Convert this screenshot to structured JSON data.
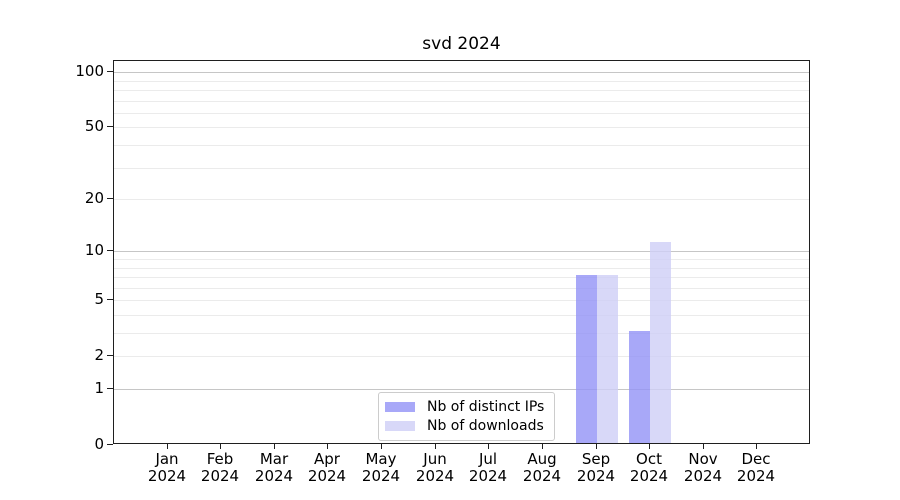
{
  "chart_data": {
    "type": "bar",
    "title": "svd 2024",
    "categories": [
      "Jan 2024",
      "Feb 2024",
      "Mar 2024",
      "Apr 2024",
      "May 2024",
      "Jun 2024",
      "Jul 2024",
      "Aug 2024",
      "Sep 2024",
      "Oct 2024",
      "Nov 2024",
      "Dec 2024"
    ],
    "series": [
      {
        "name": "Nb of distinct IPs",
        "color": "#a8a8f8",
        "values": [
          0,
          0,
          0,
          0,
          0,
          0,
          0,
          0,
          7,
          3,
          0,
          0
        ]
      },
      {
        "name": "Nb of downloads",
        "color": "#d8d8f8",
        "values": [
          0,
          0,
          0,
          0,
          0,
          0,
          0,
          0,
          7,
          11,
          0,
          0
        ]
      }
    ],
    "xlabel": "",
    "ylabel": "",
    "yscale": "log1p",
    "yticks": [
      0,
      1,
      2,
      5,
      10,
      20,
      50,
      100
    ],
    "ylim": [
      0,
      115
    ],
    "grid": "horizontal, major and minor",
    "legend_position": "lower center",
    "colors": {
      "major_grid": "#c6c6c6",
      "minor_grid": "#ebebeb",
      "spine": "#1f1f1f",
      "background": "#ffffff",
      "text": "#000000"
    }
  }
}
